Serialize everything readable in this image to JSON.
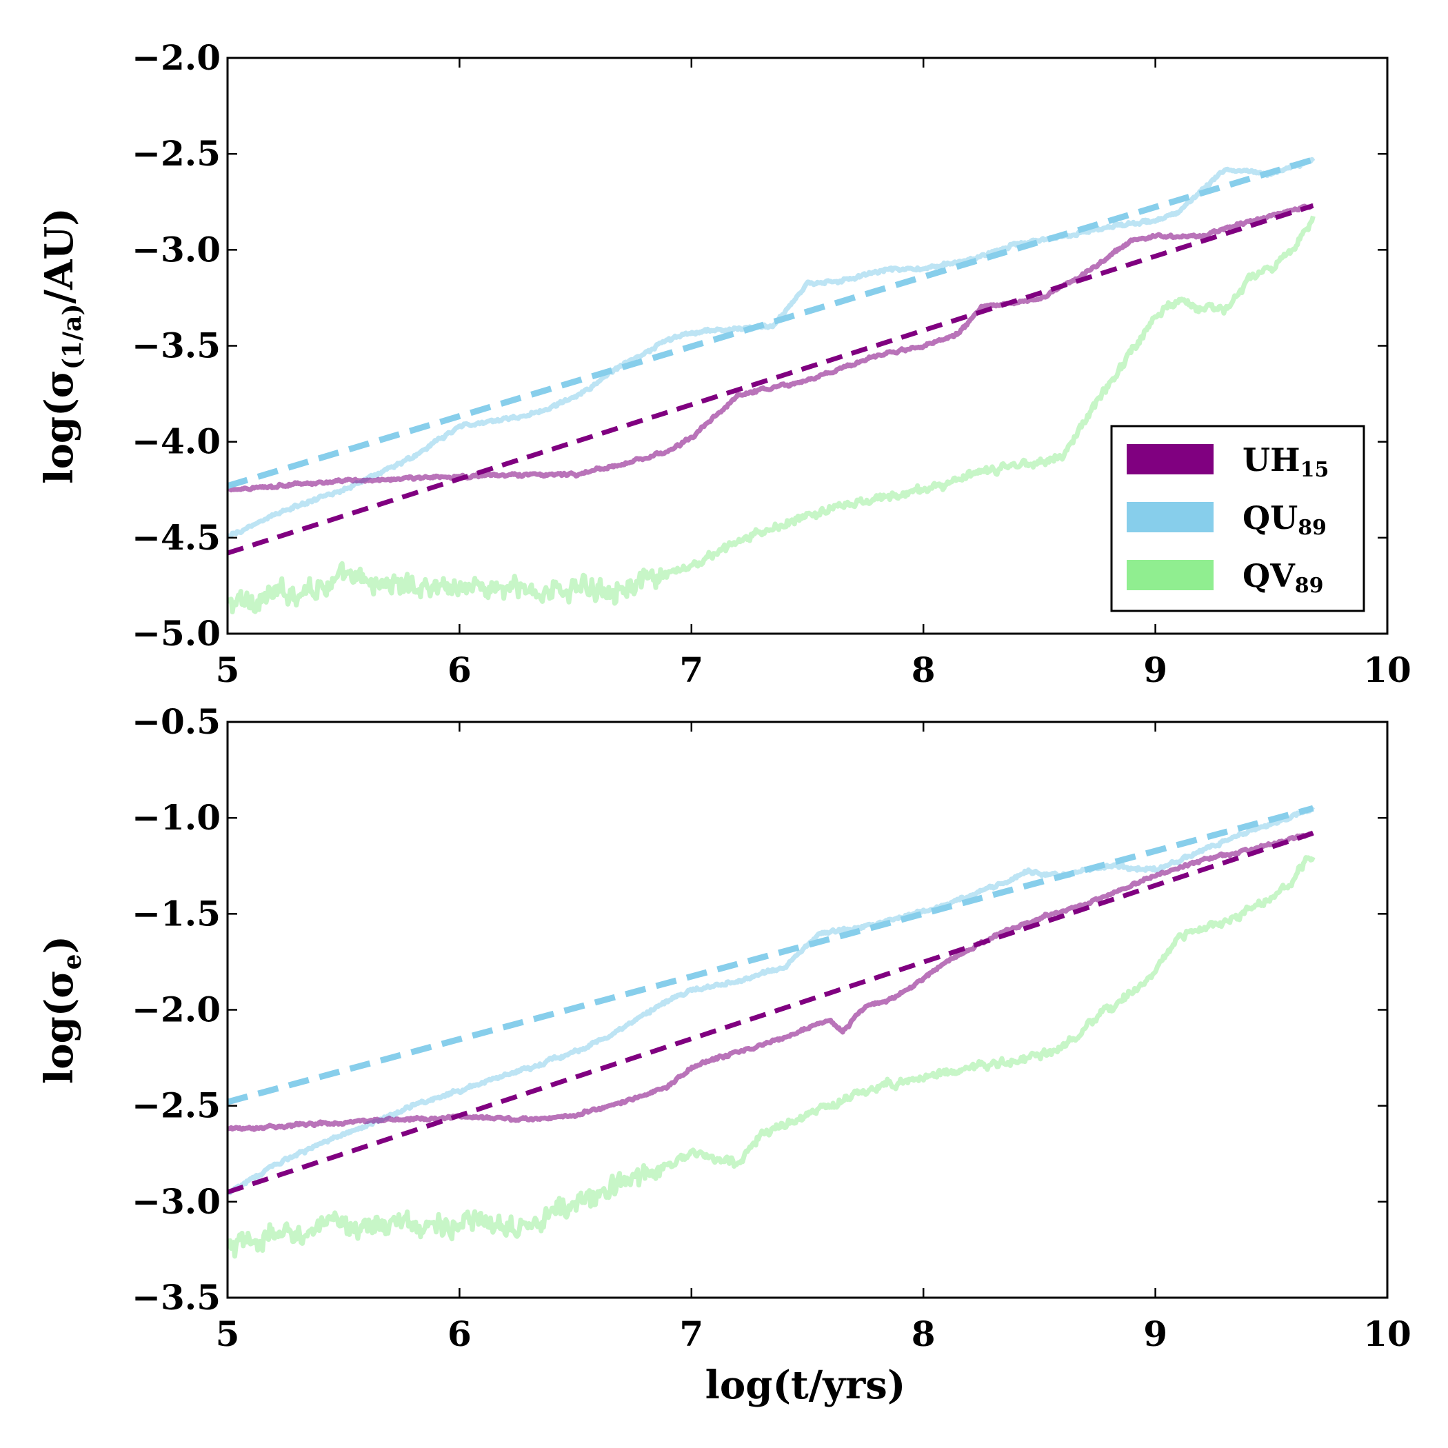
{
  "chart_data": [
    {
      "type": "line",
      "panel": "top",
      "ylabel": {
        "base": "log(σ",
        "sub": "(1/a)",
        "tail": "/AU)"
      },
      "xlim": [
        5,
        10
      ],
      "ylim": [
        -5.0,
        -2.0
      ],
      "xticks": [
        "5",
        "6",
        "7",
        "8",
        "9",
        "10"
      ],
      "yticks": [
        "−5.0",
        "−4.5",
        "−4.0",
        "−3.5",
        "−3.0",
        "−2.5",
        "−2.0"
      ],
      "ytick_values": [
        -5.0,
        -4.5,
        -4.0,
        -3.5,
        -3.0,
        -2.5,
        -2.0
      ],
      "xtick_values": [
        5,
        6,
        7,
        8,
        9,
        10
      ],
      "series": [
        {
          "key": "QV89",
          "style": "solid",
          "color": "#90ee90",
          "noise": 0.045,
          "x": [
            5.0,
            5.2,
            5.5,
            5.8,
            6.0,
            6.3,
            6.6,
            6.8,
            7.0,
            7.2,
            7.4,
            7.6,
            7.8,
            8.0,
            8.2,
            8.4,
            8.6,
            8.7,
            8.8,
            8.9,
            9.0,
            9.1,
            9.2,
            9.3,
            9.4,
            9.5,
            9.6,
            9.68
          ],
          "y": [
            -4.85,
            -4.8,
            -4.72,
            -4.75,
            -4.75,
            -4.78,
            -4.76,
            -4.74,
            -4.65,
            -4.52,
            -4.43,
            -4.35,
            -4.3,
            -4.25,
            -4.18,
            -4.12,
            -4.08,
            -3.88,
            -3.7,
            -3.52,
            -3.35,
            -3.25,
            -3.3,
            -3.32,
            -3.15,
            -3.1,
            -3.0,
            -2.82
          ]
        },
        {
          "key": "QU89",
          "style": "solid",
          "color": "#87ceeb",
          "noise": 0.012,
          "x": [
            5.0,
            5.2,
            5.5,
            5.8,
            6.0,
            6.3,
            6.5,
            6.7,
            6.9,
            7.0,
            7.2,
            7.35,
            7.5,
            7.7,
            7.85,
            8.0,
            8.2,
            8.4,
            8.6,
            8.8,
            9.0,
            9.1,
            9.3,
            9.5,
            9.68
          ],
          "y": [
            -4.5,
            -4.38,
            -4.25,
            -4.08,
            -3.92,
            -3.86,
            -3.77,
            -3.6,
            -3.47,
            -3.43,
            -3.41,
            -3.4,
            -3.18,
            -3.15,
            -3.1,
            -3.1,
            -3.05,
            -2.97,
            -2.93,
            -2.88,
            -2.85,
            -2.8,
            -2.58,
            -2.6,
            -2.53
          ]
        },
        {
          "key": "UH15",
          "style": "solid",
          "color": "#800080",
          "noise": 0.01,
          "x": [
            5.0,
            5.3,
            5.6,
            6.0,
            6.3,
            6.5,
            6.7,
            6.9,
            7.0,
            7.2,
            7.5,
            7.8,
            8.0,
            8.15,
            8.25,
            8.5,
            8.7,
            8.9,
            9.0,
            9.2,
            9.4,
            9.68
          ],
          "y": [
            -4.25,
            -4.22,
            -4.2,
            -4.18,
            -4.17,
            -4.17,
            -4.12,
            -4.05,
            -3.98,
            -3.76,
            -3.68,
            -3.55,
            -3.5,
            -3.44,
            -3.3,
            -3.26,
            -3.12,
            -2.95,
            -2.93,
            -2.93,
            -2.85,
            -2.77
          ]
        },
        {
          "key": "QU89-fit",
          "style": "dashed",
          "color": "#87ceeb",
          "x": [
            5.0,
            9.68
          ],
          "y": [
            -4.23,
            -2.53
          ]
        },
        {
          "key": "UH15-fit",
          "style": "dashed",
          "color": "#800080",
          "x": [
            5.0,
            9.68
          ],
          "y": [
            -4.58,
            -2.77
          ]
        }
      ],
      "legend": {
        "placement": "lower-right",
        "entries": [
          {
            "base": "UH",
            "sub": "15",
            "color": "#800080"
          },
          {
            "base": "QU",
            "sub": "89",
            "color": "#87ceeb"
          },
          {
            "base": "QV",
            "sub": "89",
            "color": "#90ee90"
          }
        ]
      }
    },
    {
      "type": "line",
      "panel": "bottom",
      "ylabel": {
        "base": "log(σ",
        "sub": "e",
        "tail": ")"
      },
      "xlabel": "log(t/yrs)",
      "xlim": [
        5,
        10
      ],
      "ylim": [
        -3.5,
        -0.5
      ],
      "xticks": [
        "5",
        "6",
        "7",
        "8",
        "9",
        "10"
      ],
      "yticks": [
        "−3.5",
        "−3.0",
        "−2.5",
        "−2.0",
        "−1.5",
        "−1.0",
        "−0.5"
      ],
      "ytick_values": [
        -3.5,
        -3.0,
        -2.5,
        -2.0,
        -1.5,
        -1.0,
        -0.5
      ],
      "xtick_values": [
        5,
        6,
        7,
        8,
        9,
        10
      ],
      "series": [
        {
          "key": "QV89",
          "style": "solid",
          "color": "#90ee90",
          "noise": 0.045,
          "x": [
            5.0,
            5.2,
            5.5,
            5.8,
            6.0,
            6.3,
            6.5,
            6.8,
            7.0,
            7.2,
            7.3,
            7.5,
            7.7,
            7.8,
            8.0,
            8.2,
            8.4,
            8.6,
            8.7,
            8.9,
            9.0,
            9.1,
            9.2,
            9.3,
            9.4,
            9.5,
            9.6,
            9.68
          ],
          "y": [
            -3.25,
            -3.18,
            -3.12,
            -3.12,
            -3.12,
            -3.1,
            -3.02,
            -2.85,
            -2.75,
            -2.8,
            -2.65,
            -2.55,
            -2.45,
            -2.4,
            -2.35,
            -2.3,
            -2.27,
            -2.2,
            -2.1,
            -1.9,
            -1.8,
            -1.62,
            -1.58,
            -1.55,
            -1.48,
            -1.42,
            -1.32,
            -1.18
          ]
        },
        {
          "key": "QU89",
          "style": "solid",
          "color": "#87ceeb",
          "noise": 0.012,
          "x": [
            5.0,
            5.3,
            5.5,
            5.8,
            6.0,
            6.3,
            6.5,
            6.7,
            6.9,
            7.0,
            7.2,
            7.4,
            7.55,
            7.7,
            7.9,
            8.1,
            8.3,
            8.45,
            8.6,
            8.8,
            9.0,
            9.2,
            9.4,
            9.68
          ],
          "y": [
            -2.95,
            -2.75,
            -2.65,
            -2.5,
            -2.42,
            -2.3,
            -2.22,
            -2.1,
            -1.95,
            -1.9,
            -1.85,
            -1.78,
            -1.6,
            -1.58,
            -1.52,
            -1.45,
            -1.36,
            -1.28,
            -1.3,
            -1.25,
            -1.27,
            -1.17,
            -1.07,
            -0.95
          ]
        },
        {
          "key": "UH15",
          "style": "solid",
          "color": "#800080",
          "noise": 0.01,
          "x": [
            5.0,
            5.3,
            5.6,
            6.0,
            6.3,
            6.5,
            6.7,
            6.9,
            7.0,
            7.2,
            7.4,
            7.6,
            7.65,
            7.75,
            7.85,
            7.95,
            8.1,
            8.3,
            8.5,
            8.7,
            8.9,
            9.0,
            9.2,
            9.4,
            9.68
          ],
          "y": [
            -2.62,
            -2.6,
            -2.58,
            -2.56,
            -2.57,
            -2.55,
            -2.48,
            -2.4,
            -2.3,
            -2.22,
            -2.15,
            -2.05,
            -2.12,
            -1.98,
            -1.95,
            -1.88,
            -1.75,
            -1.62,
            -1.52,
            -1.45,
            -1.35,
            -1.3,
            -1.22,
            -1.17,
            -1.08
          ]
        },
        {
          "key": "QU89-fit",
          "style": "dashed",
          "color": "#87ceeb",
          "x": [
            5.0,
            9.68
          ],
          "y": [
            -2.48,
            -0.95
          ]
        },
        {
          "key": "UH15-fit",
          "style": "dashed",
          "color": "#800080",
          "x": [
            5.0,
            9.68
          ],
          "y": [
            -2.95,
            -1.08
          ]
        }
      ]
    }
  ]
}
